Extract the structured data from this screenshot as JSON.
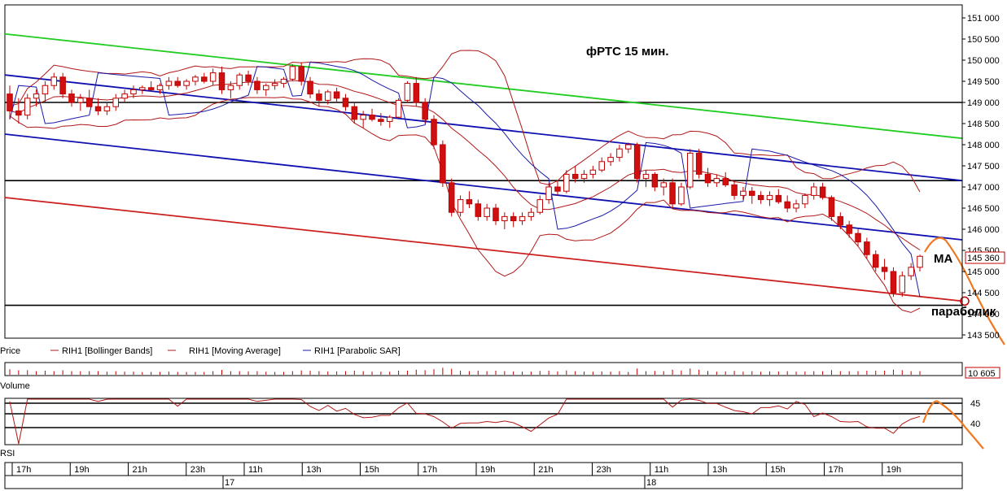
{
  "chart_data": [
    {
      "type": "candlestick",
      "title": "фРТС   15 мин.",
      "ylim": [
        143500,
        151000
      ],
      "y_ticks": [
        "151 000",
        "150 500",
        "150 000",
        "149 500",
        "149 000",
        "148 500",
        "148 000",
        "147 500",
        "147 000",
        "146 500",
        "146 000",
        "145 500",
        "145 000",
        "144 500",
        "144 000",
        "143 500"
      ],
      "last_price": "145 360",
      "legend": [
        {
          "label": "Price",
          "color": "#c8102e"
        },
        {
          "label": "RIH1 [Bollinger Bands]",
          "color": "#b01818"
        },
        {
          "label": "RIH1 [Moving Average]",
          "color": "#b01818"
        },
        {
          "label": "RIH1 [Parabolic SAR]",
          "color": "#1a1aa8"
        }
      ],
      "horizontal_levels": [
        149000,
        147150,
        144200
      ],
      "trend_lines": [
        {
          "color": "#22cc22",
          "from": [
            0,
            150620
          ],
          "to": [
            1,
            148150
          ]
        },
        {
          "color": "#1010b0",
          "from": [
            0,
            149650
          ],
          "to": [
            1,
            147150
          ]
        },
        {
          "color": "#1010b0",
          "from": [
            0,
            148250
          ],
          "to": [
            1,
            145750
          ]
        },
        {
          "color": "#cc2020",
          "from": [
            0,
            146750
          ],
          "to": [
            1,
            144300
          ]
        }
      ],
      "annotations": [
        "MA",
        "параболик"
      ],
      "candles": [
        [
          149200,
          149400,
          148600,
          148800
        ],
        [
          148800,
          149100,
          148500,
          148700
        ],
        [
          148700,
          149200,
          148600,
          149100
        ],
        [
          149100,
          149300,
          148900,
          149200
        ],
        [
          149200,
          149500,
          149000,
          149400
        ],
        [
          149400,
          149700,
          149300,
          149600
        ],
        [
          149600,
          149700,
          149100,
          149200
        ],
        [
          149200,
          149300,
          148900,
          149000
        ],
        [
          149000,
          149200,
          148800,
          149100
        ],
        [
          149100,
          149300,
          148900,
          148900
        ],
        [
          148900,
          149100,
          148700,
          148800
        ],
        [
          148800,
          149000,
          148700,
          148900
        ],
        [
          148900,
          149200,
          148800,
          149100
        ],
        [
          149100,
          149300,
          149000,
          149200
        ],
        [
          149200,
          149400,
          149100,
          149300
        ],
        [
          149300,
          149400,
          149200,
          149350
        ],
        [
          149350,
          149500,
          149250,
          149300
        ],
        [
          149300,
          149450,
          149200,
          149400
        ],
        [
          149400,
          149600,
          149300,
          149500
        ],
        [
          149500,
          149600,
          149350,
          149400
        ],
        [
          149400,
          149550,
          149300,
          149500
        ],
        [
          149500,
          149650,
          149400,
          149600
        ],
        [
          149600,
          149700,
          149450,
          149500
        ],
        [
          149500,
          149800,
          149400,
          149700
        ],
        [
          149700,
          149850,
          149200,
          149300
        ],
        [
          149300,
          149500,
          149100,
          149400
        ],
        [
          149400,
          149700,
          149300,
          149650
        ],
        [
          149650,
          149750,
          149400,
          149500
        ],
        [
          149500,
          149600,
          149200,
          149300
        ],
        [
          149300,
          149450,
          149150,
          149400
        ],
        [
          149400,
          149550,
          149300,
          149450
        ],
        [
          149450,
          149600,
          149350,
          149550
        ],
        [
          149550,
          149900,
          149500,
          149850
        ],
        [
          149850,
          149950,
          149400,
          149500
        ],
        [
          149500,
          149600,
          149100,
          149200
        ],
        [
          149200,
          149300,
          148900,
          149050
        ],
        [
          149050,
          149300,
          148950,
          149250
        ],
        [
          149250,
          149350,
          149000,
          149100
        ],
        [
          149100,
          149200,
          148800,
          148900
        ],
        [
          148900,
          149000,
          148500,
          148600
        ],
        [
          148600,
          148800,
          148400,
          148700
        ],
        [
          148700,
          148850,
          148550,
          148600
        ],
        [
          148600,
          148750,
          148450,
          148550
        ],
        [
          148550,
          148700,
          148400,
          148650
        ],
        [
          148650,
          149100,
          148600,
          149050
        ],
        [
          149050,
          149500,
          149000,
          149450
        ],
        [
          149450,
          149600,
          148900,
          149000
        ],
        [
          149000,
          149100,
          148500,
          148600
        ],
        [
          148600,
          148700,
          147900,
          148000
        ],
        [
          148000,
          148100,
          147000,
          147100
        ],
        [
          147100,
          147200,
          146300,
          146400
        ],
        [
          146400,
          146800,
          146300,
          146700
        ],
        [
          146700,
          146900,
          146500,
          146600
        ],
        [
          146600,
          146700,
          146200,
          146300
        ],
        [
          146300,
          146600,
          146200,
          146500
        ],
        [
          146500,
          146600,
          146100,
          146200
        ],
        [
          146200,
          146400,
          146000,
          146300
        ],
        [
          146300,
          146400,
          146050,
          146200
        ],
        [
          146200,
          146400,
          146100,
          146300
        ],
        [
          146300,
          146500,
          146200,
          146400
        ],
        [
          146400,
          146800,
          146350,
          146700
        ],
        [
          146700,
          147100,
          146600,
          147000
        ],
        [
          147000,
          147150,
          146800,
          146900
        ],
        [
          146900,
          147400,
          146850,
          147300
        ],
        [
          147300,
          147500,
          147100,
          147200
        ],
        [
          147200,
          147400,
          147100,
          147300
        ],
        [
          147300,
          147500,
          147200,
          147400
        ],
        [
          147400,
          147700,
          147350,
          147600
        ],
        [
          147600,
          147800,
          147500,
          147700
        ],
        [
          147700,
          148000,
          147600,
          147900
        ],
        [
          147900,
          148050,
          147800,
          148000
        ],
        [
          148000,
          148050,
          147100,
          147200
        ],
        [
          147200,
          147400,
          147000,
          147300
        ],
        [
          147300,
          147350,
          146900,
          147000
        ],
        [
          147000,
          147200,
          146800,
          147100
        ],
        [
          147100,
          147200,
          146500,
          146600
        ],
        [
          146600,
          147100,
          146550,
          147000
        ],
        [
          147000,
          147900,
          146950,
          147800
        ],
        [
          147800,
          147900,
          147200,
          147300
        ],
        [
          147300,
          147450,
          147000,
          147100
        ],
        [
          147100,
          147300,
          147000,
          147200
        ],
        [
          147200,
          147350,
          147000,
          147050
        ],
        [
          147050,
          147150,
          146700,
          146800
        ],
        [
          146800,
          147000,
          146700,
          146900
        ],
        [
          146900,
          147000,
          146600,
          146800
        ],
        [
          146800,
          146900,
          146600,
          146700
        ],
        [
          146700,
          146900,
          146550,
          146800
        ],
        [
          146800,
          146950,
          146600,
          146650
        ],
        [
          146650,
          146800,
          146400,
          146500
        ],
        [
          146500,
          146700,
          146400,
          146600
        ],
        [
          146600,
          146850,
          146500,
          146800
        ],
        [
          146800,
          147100,
          146700,
          147000
        ],
        [
          147000,
          147100,
          146700,
          146750
        ],
        [
          146750,
          146800,
          146200,
          146300
        ],
        [
          146300,
          146400,
          146000,
          146100
        ],
        [
          146100,
          146200,
          145800,
          145900
        ],
        [
          145900,
          146000,
          145600,
          145700
        ],
        [
          145700,
          145800,
          145300,
          145400
        ],
        [
          145400,
          145500,
          145000,
          145100
        ],
        [
          145100,
          145300,
          144800,
          145000
        ],
        [
          145000,
          145100,
          144400,
          144500
        ],
        [
          144500,
          145000,
          144400,
          144900
        ],
        [
          144900,
          145200,
          144800,
          145100
        ],
        [
          145100,
          145400,
          145000,
          145360
        ]
      ]
    },
    {
      "type": "bar",
      "label": "Volume",
      "last_value": "10 605"
    },
    {
      "type": "line",
      "label": "RSI",
      "y_ticks": [
        "45",
        "40"
      ],
      "levels": [
        45,
        42.5,
        40
      ]
    }
  ],
  "time_axis": {
    "labels": [
      "17h",
      "19h",
      "21h",
      "23h",
      "11h",
      "13h",
      "15h",
      "17h",
      "19h",
      "21h",
      "23h",
      "11h",
      "13h",
      "15h",
      "17h",
      "19h"
    ],
    "dates": [
      "17",
      "18"
    ]
  },
  "colors": {
    "bull": "#ffffff",
    "bear": "#d01010",
    "candle_outline": "#c00000",
    "sar": "#1a1aa8",
    "forecast": "#f07820"
  }
}
